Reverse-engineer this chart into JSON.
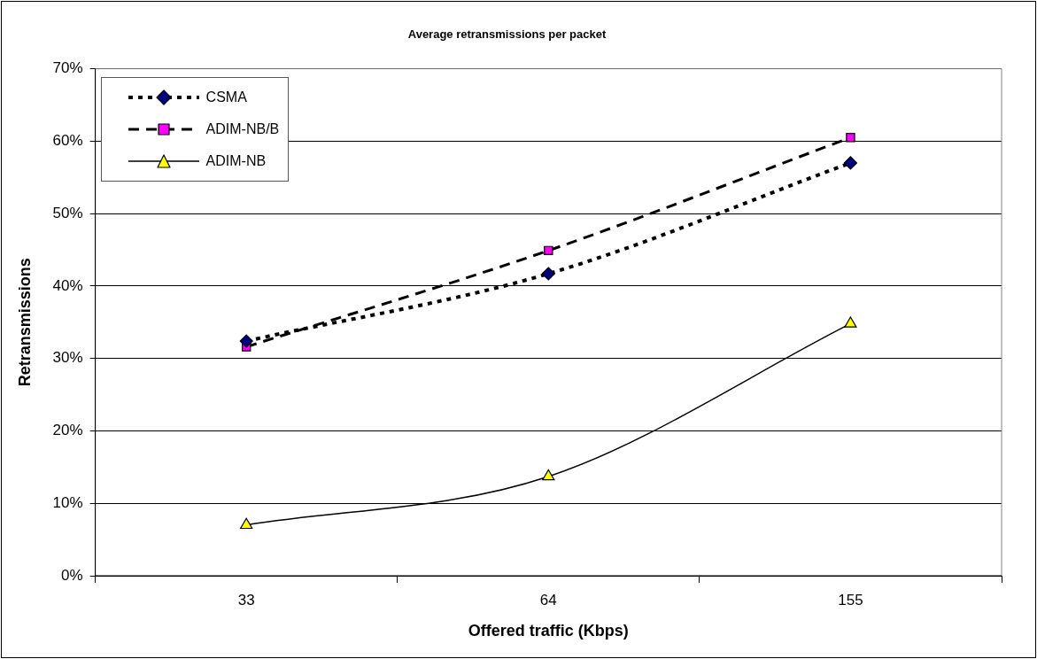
{
  "chart_data": {
    "type": "line",
    "title": "Average retransmissions per packet",
    "xlabel": "Offered traffic (Kbps)",
    "ylabel": "Retransmissions",
    "categories": [
      "33",
      "64",
      "155"
    ],
    "series": [
      {
        "name": "CSMA",
        "color": "#000080",
        "values": [
          32.4,
          41.7,
          57.0
        ],
        "marker": "diamond",
        "line_style": "dotted"
      },
      {
        "name": "ADIM-NB/B",
        "color": "#ff00ff",
        "values": [
          31.6,
          44.9,
          60.5
        ],
        "marker": "square",
        "line_style": "dashed"
      },
      {
        "name": "ADIM-NB",
        "color": "#ffff00",
        "values": [
          7.0,
          13.7,
          34.8
        ],
        "marker": "triangle",
        "line_style": "solid"
      }
    ],
    "ylim": [
      0,
      70
    ],
    "yticks": [
      {
        "value": 0,
        "label": "0%"
      },
      {
        "value": 10,
        "label": "10%"
      },
      {
        "value": 20,
        "label": "20%"
      },
      {
        "value": 30,
        "label": "30%"
      },
      {
        "value": 40,
        "label": "40%"
      },
      {
        "value": 50,
        "label": "50%"
      },
      {
        "value": 60,
        "label": "60%"
      },
      {
        "value": 70,
        "label": "70%"
      }
    ],
    "grid": "y",
    "legend": "top left"
  }
}
